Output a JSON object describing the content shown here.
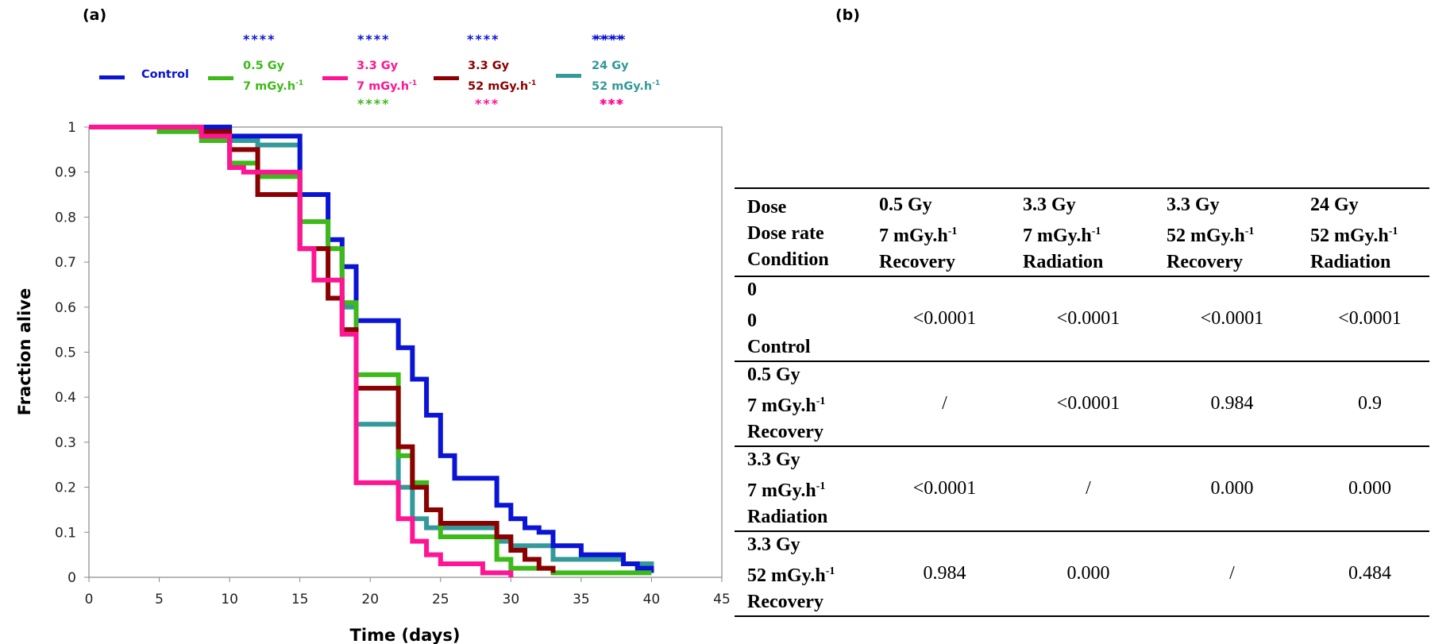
{
  "panel_a_label": "(a)",
  "panel_b_label": "(b)",
  "colors": {
    "control": "#0a14d4",
    "g05": "#3dba1a",
    "g33_7": "#ff1493",
    "g33_52": "#8b0000",
    "g24": "#339999"
  },
  "legend": [
    {
      "key": "control",
      "line1": "Control",
      "line2": "",
      "line2_sup": "",
      "stars_top": "****",
      "stars_bottom": "",
      "stars_bottom_color": ""
    },
    {
      "key": "g05",
      "line1": "0.5 Gy",
      "line2": "7 mGy.h",
      "line2_sup": "-1",
      "stars_top": "****",
      "stars_bottom": "****",
      "stars_bottom_color": "#3dba1a"
    },
    {
      "key": "g33_7",
      "line1": "3.3 Gy",
      "line2": "7 mGy.h",
      "line2_sup": "-1",
      "stars_top": "****",
      "stars_bottom": "***",
      "stars_bottom_color": "#ff1493"
    },
    {
      "key": "g33_52",
      "line1": "3.3 Gy",
      "line2": "52 mGy.h",
      "line2_sup": "-1",
      "stars_top": "****",
      "stars_bottom": "***",
      "stars_bottom_color": "#ff1493"
    },
    {
      "key": "g24",
      "line1": "24 Gy",
      "line2": "52 mGy.h",
      "line2_sup": "-1",
      "stars_top": "",
      "stars_bottom": "",
      "stars_bottom_color": ""
    }
  ],
  "chart_data": {
    "type": "line",
    "step": true,
    "xlabel": "Time (days)",
    "ylabel": "Fraction alive",
    "xlim": [
      0,
      45
    ],
    "ylim": [
      0,
      1
    ],
    "xticks": [
      "0",
      "5",
      "10",
      "15",
      "20",
      "25",
      "30",
      "35",
      "40",
      "45"
    ],
    "yticks": [
      "0",
      "0.1",
      "0.2",
      "0.3",
      "0.4",
      "0.5",
      "0.6",
      "0.7",
      "0.8",
      "0.9",
      "1"
    ],
    "grid": false,
    "legend_position": "top",
    "series": [
      {
        "name": "Control",
        "color": "#0a14d4",
        "x": [
          0,
          10,
          15,
          17,
          18,
          19,
          22,
          23,
          24,
          25,
          26,
          29,
          30,
          31,
          32,
          33,
          35,
          38,
          39,
          40
        ],
        "y": [
          1.0,
          0.98,
          0.85,
          0.75,
          0.69,
          0.57,
          0.51,
          0.44,
          0.36,
          0.27,
          0.22,
          0.16,
          0.13,
          0.11,
          0.1,
          0.07,
          0.05,
          0.03,
          0.02,
          0.01
        ]
      },
      {
        "name": "0.5 Gy 7 mGy.h-1",
        "color": "#3dba1a",
        "x": [
          0,
          5,
          8,
          10,
          12,
          15,
          17,
          18,
          19,
          21,
          22,
          23,
          24,
          25,
          29,
          30,
          33,
          40
        ],
        "y": [
          1.0,
          0.99,
          0.97,
          0.92,
          0.89,
          0.79,
          0.73,
          0.61,
          0.45,
          0.45,
          0.27,
          0.21,
          0.15,
          0.09,
          0.04,
          0.02,
          0.01,
          0.01
        ]
      },
      {
        "name": "3.3 Gy 7 mGy.h-1",
        "color": "#ff1493",
        "x": [
          0,
          8,
          10,
          11,
          15,
          16,
          18,
          19,
          22,
          23,
          24,
          25,
          28,
          30
        ],
        "y": [
          1.0,
          0.98,
          0.91,
          0.9,
          0.73,
          0.66,
          0.54,
          0.21,
          0.13,
          0.08,
          0.05,
          0.03,
          0.01,
          0.0
        ]
      },
      {
        "name": "3.3 Gy 52 mGy.h-1",
        "color": "#8b0000",
        "x": [
          0,
          8,
          10,
          12,
          15,
          17,
          18,
          19,
          21,
          22,
          23,
          24,
          25,
          29,
          30,
          31,
          32,
          33
        ],
        "y": [
          1.0,
          0.99,
          0.95,
          0.85,
          0.73,
          0.62,
          0.55,
          0.42,
          0.42,
          0.29,
          0.2,
          0.15,
          0.12,
          0.09,
          0.06,
          0.04,
          0.02,
          0.01
        ]
      },
      {
        "name": "24 Gy 52 mGy.h-1",
        "color": "#339999",
        "x": [
          0,
          5,
          8,
          10,
          12,
          15,
          18,
          19,
          20,
          22,
          23,
          24,
          27,
          29,
          30,
          33,
          37,
          38,
          40
        ],
        "y": [
          1.0,
          0.99,
          0.98,
          0.97,
          0.96,
          0.73,
          0.6,
          0.34,
          0.34,
          0.2,
          0.13,
          0.11,
          0.11,
          0.08,
          0.07,
          0.04,
          0.04,
          0.03,
          0.01
        ]
      }
    ]
  },
  "table": {
    "header": [
      {
        "l1": "Dose",
        "l2": "Dose rate",
        "l2_sup": "",
        "l3": "Condition"
      },
      {
        "l1": "0.5 Gy",
        "l2": "7 mGy.h",
        "l2_sup": "-1",
        "l3": "Recovery"
      },
      {
        "l1": "3.3 Gy",
        "l2": "7 mGy.h",
        "l2_sup": "-1",
        "l3": "Radiation"
      },
      {
        "l1": "3.3 Gy",
        "l2": "52 mGy.h",
        "l2_sup": "-1",
        "l3": "Recovery"
      },
      {
        "l1": "24 Gy",
        "l2": "52 mGy.h",
        "l2_sup": "-1",
        "l3": "Radiation"
      }
    ],
    "rows": [
      {
        "l1": "0",
        "l2": "0",
        "l2_sup": "",
        "l3": "Control",
        "values": [
          "<0.0001",
          "<0.0001",
          "<0.0001",
          "<0.0001"
        ]
      },
      {
        "l1": "0.5 Gy",
        "l2": "7 mGy.h",
        "l2_sup": "-1",
        "l3": "Recovery",
        "values": [
          "/",
          "<0.0001",
          "0.984",
          "0.9"
        ]
      },
      {
        "l1": "3.3 Gy",
        "l2": "7 mGy.h",
        "l2_sup": "-1",
        "l3": "Radiation",
        "values": [
          "<0.0001",
          "/",
          "0.000",
          "0.000"
        ]
      },
      {
        "l1": "3.3 Gy",
        "l2": "52 mGy.h",
        "l2_sup": "-1",
        "l3": "Recovery",
        "values": [
          "0.984",
          "0.000",
          "/",
          "0.484"
        ]
      }
    ]
  },
  "legend_g24_stars_top": "****",
  "legend_g24_stars_bottom": "***"
}
